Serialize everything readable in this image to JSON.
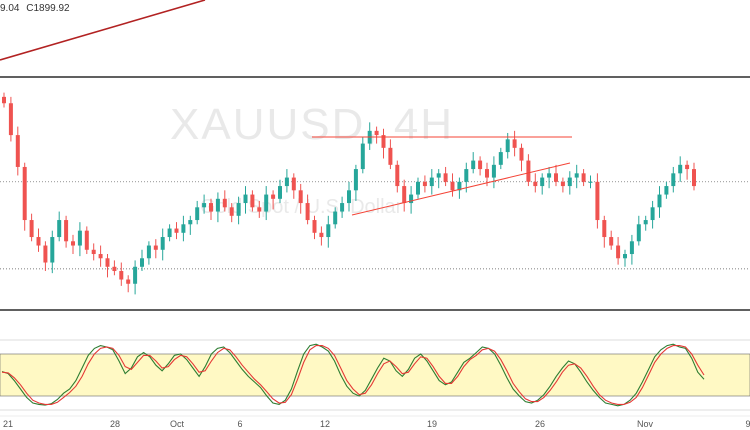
{
  "header": {
    "ohlc_fragment": "9.04",
    "close_label": "C1899.92"
  },
  "watermark": {
    "symbol": "XAUUSD, 4H",
    "description": "Gold Spot / U.S. Dollar"
  },
  "x_axis": {
    "ticks": [
      "21",
      "28",
      "Oct",
      "6",
      "12",
      "19",
      "26",
      "Nov",
      "9"
    ]
  },
  "colors": {
    "bull": "#26a69a",
    "bear": "#ef5350",
    "trendline_dark": "#b22222",
    "trendline_light": "#f44336",
    "box_border": "#000000",
    "stoch_band": "#fff9c4",
    "stoch_k": "#2e7d32",
    "stoch_d": "#e53935"
  },
  "chart_data": [
    {
      "type": "candlestick",
      "symbol": "XAUUSD",
      "timeframe": "4H",
      "x": [
        "21",
        "28",
        "Oct",
        "6",
        "12",
        "19",
        "26",
        "Nov",
        "9"
      ],
      "y_close_series": [
        1935,
        1920,
        1905,
        1880,
        1872,
        1868,
        1860,
        1872,
        1880,
        1870,
        1868,
        1875,
        1866,
        1864,
        1862,
        1858,
        1856,
        1852,
        1850,
        1858,
        1862,
        1868,
        1866,
        1872,
        1876,
        1874,
        1878,
        1880,
        1886,
        1888,
        1884,
        1890,
        1886,
        1882,
        1888,
        1892,
        1886,
        1884,
        1892,
        1890,
        1896,
        1900,
        1894,
        1888,
        1880,
        1874,
        1872,
        1878,
        1884,
        1888,
        1894,
        1904,
        1916,
        1922,
        1920,
        1914,
        1906,
        1896,
        1888,
        1892,
        1898,
        1896,
        1900,
        1902,
        1898,
        1894,
        1898,
        1904,
        1908,
        1904,
        1900,
        1906,
        1912,
        1918,
        1914,
        1908,
        1898,
        1896,
        1900,
        1902,
        1898,
        1896,
        1900,
        1902,
        1898,
        1898,
        1880,
        1872,
        1868,
        1862,
        1864,
        1870,
        1878,
        1880,
        1886,
        1892,
        1896,
        1902,
        1906,
        1904,
        1896
      ],
      "horizontal_levels": [
        1898,
        1857
      ],
      "annotations": [
        "resistance line near 1922",
        "rising trendline",
        "long-term rising trendline"
      ]
    },
    {
      "type": "line",
      "name": "Stochastic",
      "ylim": [
        0,
        100
      ],
      "bands": [
        20,
        80
      ],
      "series": [
        {
          "values": [
            55,
            52,
            42,
            30,
            18,
            10,
            8,
            7,
            9,
            15,
            24,
            30,
            42,
            60,
            78,
            88,
            92,
            90,
            86,
            70,
            52,
            60,
            76,
            82,
            76,
            64,
            56,
            66,
            78,
            80,
            72,
            60,
            48,
            62,
            80,
            88,
            90,
            82,
            70,
            58,
            48,
            40,
            32,
            20,
            10,
            8,
            14,
            30,
            56,
            80,
            92,
            94,
            90,
            84,
            70,
            50,
            34,
            24,
            20,
            28,
            44,
            60,
            74,
            70,
            56,
            48,
            58,
            74,
            80,
            70,
            56,
            42,
            36,
            40,
            54,
            68,
            74,
            82,
            90,
            88,
            80,
            64,
            46,
            30,
            20,
            12,
            10,
            14,
            22,
            34,
            48,
            60,
            70,
            66,
            54,
            40,
            28,
            18,
            10,
            8,
            6,
            8,
            14,
            24,
            40,
            58,
            76,
            86,
            92,
            94,
            90,
            88,
            74,
            54,
            44
          ]
        },
        {
          "values": [
            54,
            53,
            46,
            36,
            24,
            14,
            10,
            8,
            8,
            11,
            18,
            25,
            34,
            48,
            66,
            80,
            88,
            90,
            88,
            78,
            62,
            58,
            68,
            78,
            78,
            70,
            60,
            62,
            72,
            78,
            76,
            66,
            54,
            56,
            70,
            82,
            88,
            86,
            76,
            64,
            54,
            44,
            36,
            26,
            16,
            10,
            11,
            22,
            44,
            68,
            86,
            92,
            92,
            88,
            78,
            60,
            42,
            30,
            22,
            24,
            36,
            52,
            66,
            70,
            62,
            52,
            54,
            66,
            76,
            74,
            62,
            48,
            38,
            38,
            48,
            62,
            72,
            78,
            86,
            88,
            84,
            72,
            56,
            38,
            26,
            16,
            12,
            12,
            18,
            28,
            40,
            54,
            64,
            66,
            60,
            48,
            34,
            22,
            14,
            10,
            8,
            8,
            11,
            18,
            32,
            50,
            68,
            80,
            88,
            92,
            92,
            90,
            80,
            64,
            50
          ]
        }
      ]
    }
  ]
}
